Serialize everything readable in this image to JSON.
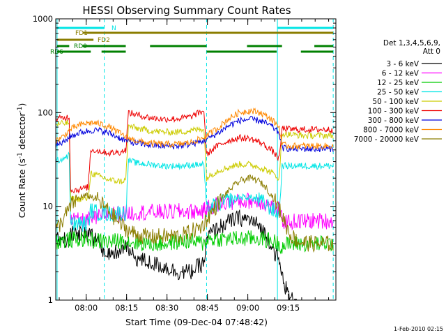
{
  "chart_data": {
    "type": "line",
    "title": "HESSI Observing Summary Count Rates",
    "xlabel": "Start Time (09-Dec-04 07:48:42)",
    "ylabel": "Count Rate (s",
    "ylabel_sup1": "-1",
    "ylabel_mid": " detector",
    "ylabel_sup2": "-1",
    "ylabel_end": ")",
    "y_scale": "log",
    "ylim": [
      1,
      1000
    ],
    "x_unit": "minutes since 07:48:42",
    "xlim": [
      0,
      104
    ],
    "x_ticks": [
      {
        "x": 11.3,
        "label": "08:00"
      },
      {
        "x": 26.3,
        "label": "08:15"
      },
      {
        "x": 41.3,
        "label": "08:30"
      },
      {
        "x": 56.3,
        "label": "08:45"
      },
      {
        "x": 71.3,
        "label": "09:00"
      },
      {
        "x": 86.3,
        "label": "09:15"
      }
    ],
    "y_ticks": [
      {
        "y": 1,
        "label": "1"
      },
      {
        "y": 10,
        "label": "10"
      },
      {
        "y": 100,
        "label": "100"
      },
      {
        "y": 1000,
        "label": "1000"
      }
    ],
    "legend_title": "Det 1,3,4,5,6,9,",
    "legend_subtitle": "Att 0",
    "legend_position": "right",
    "timestamp": "1-Feb-2010 02:15",
    "vlines": [
      {
        "x": 0.5,
        "style": "solid"
      },
      {
        "x": 18.0,
        "style": "dashed"
      },
      {
        "x": 56.0,
        "style": "dashed"
      },
      {
        "x": 82.3,
        "style": "solid"
      },
      {
        "x": 103.0,
        "style": "dashed"
      }
    ],
    "flags": [
      {
        "label": "N",
        "color": "#00e5e5",
        "row": 0,
        "segments": [
          [
            0.5,
            18.0
          ],
          [
            82.3,
            103.0
          ]
        ]
      },
      {
        "label": "FD1",
        "color": "#8b7d00",
        "row": 1,
        "segments": [
          [
            10.0,
            103.0
          ]
        ]
      },
      {
        "label": "FD2",
        "color": "#8b7d00",
        "row": 2,
        "segments": [
          [
            0.5,
            14.0
          ]
        ]
      },
      {
        "label": "RD0",
        "color": "#008000",
        "row": 3,
        "segments": [
          [
            0.5,
            5.0
          ],
          [
            10.0,
            26.0
          ],
          [
            35.0,
            56.0
          ],
          [
            71.0,
            84.0
          ],
          [
            96.0,
            103.0
          ]
        ]
      },
      {
        "label": "RD6",
        "color": "#008000",
        "row": 4,
        "segments": [
          [
            0.5,
            13.0
          ],
          [
            17.0,
            26.0
          ],
          [
            56.0,
            82.0
          ],
          [
            91.0,
            103.0
          ]
        ]
      }
    ],
    "series": [
      {
        "name": "3 - 6 keV",
        "color": "#000000",
        "x": [
          0,
          3,
          5,
          5.5,
          12,
          14,
          17,
          20,
          24,
          26,
          27,
          30,
          35,
          40,
          45,
          50,
          55,
          56,
          57,
          60,
          64,
          68,
          72,
          76,
          80,
          83,
          84,
          86,
          87,
          89,
          90
        ],
        "y": [
          4.5,
          4.5,
          4.3,
          5.0,
          5.0,
          4.6,
          3.6,
          3.2,
          3.2,
          4.0,
          3.3,
          2.8,
          2.5,
          2.3,
          2.0,
          2.0,
          2.5,
          4.2,
          5.0,
          5.8,
          6.8,
          7.5,
          7.2,
          6.0,
          4.0,
          2.5,
          1.8,
          1.2,
          1.0,
          1.0,
          1.0
        ]
      },
      {
        "name": "6 - 12 keV",
        "color": "#ff00ff",
        "x": [
          5.5,
          10,
          15,
          18,
          20,
          24,
          26,
          30,
          35,
          40,
          45,
          50,
          55,
          56,
          57,
          60,
          64,
          68,
          72,
          76,
          80,
          83,
          84,
          86,
          90,
          95,
          100,
          103
        ],
        "y": [
          7.0,
          7.0,
          7.5,
          8.0,
          8.4,
          8.2,
          8.5,
          8.6,
          8.7,
          8.7,
          8.8,
          8.8,
          8.9,
          9.5,
          9.8,
          10.5,
          11.0,
          11.2,
          11.5,
          11.2,
          10.0,
          9.0,
          7.0,
          6.8,
          6.9,
          7.0,
          7.0,
          7.0
        ]
      },
      {
        "name": "12 - 25 keV",
        "color": "#00cc00",
        "x": [
          0,
          5,
          10,
          15,
          20,
          25,
          30,
          35,
          40,
          45,
          50,
          55,
          56,
          60,
          65,
          70,
          75,
          80,
          83,
          84,
          88,
          92,
          96,
          100,
          103
        ],
        "y": [
          4.2,
          4.4,
          4.5,
          4.3,
          4.2,
          4.3,
          4.1,
          4.0,
          4.0,
          4.2,
          4.3,
          4.0,
          4.5,
          4.5,
          4.5,
          4.5,
          4.6,
          4.3,
          4.0,
          3.8,
          4.0,
          4.0,
          4.0,
          4.0,
          4.0
        ]
      },
      {
        "name": "25 - 50 keV",
        "color": "#00e5e5",
        "x": [
          0,
          5,
          5.5,
          8,
          12,
          13,
          14,
          16,
          18,
          20,
          24,
          26,
          27,
          30,
          35,
          40,
          45,
          50,
          55,
          56,
          57,
          60,
          64,
          68,
          72,
          76,
          80,
          83,
          84,
          88,
          92,
          96,
          100,
          103
        ],
        "y": [
          30,
          35,
          6.5,
          6.5,
          6.5,
          9.0,
          8.8,
          8.5,
          8.5,
          8.3,
          8.5,
          8.5,
          31,
          29,
          28,
          27,
          27,
          27.5,
          28,
          9.0,
          9.5,
          10.5,
          11.5,
          12.5,
          12.5,
          11.5,
          9.5,
          8.0,
          27,
          27,
          27,
          27,
          27,
          27
        ]
      },
      {
        "name": "50 - 100 keV",
        "color": "#cccc00",
        "x": [
          0,
          5,
          5.5,
          8,
          12,
          13,
          14,
          16,
          18,
          20,
          24,
          26,
          27,
          30,
          35,
          40,
          45,
          50,
          55,
          56,
          57,
          60,
          64,
          68,
          72,
          76,
          80,
          83,
          84,
          88,
          92,
          96,
          100,
          103
        ],
        "y": [
          75,
          78,
          12,
          12,
          12,
          23,
          22,
          21,
          20,
          19,
          18.5,
          19,
          72,
          68,
          64,
          62,
          62,
          64,
          68,
          20,
          21,
          24,
          26,
          28,
          28,
          26,
          23,
          20,
          60,
          58,
          57,
          57,
          57,
          57
        ]
      },
      {
        "name": "100 - 300 keV",
        "color": "#ee0000",
        "x": [
          0,
          5,
          5.5,
          8,
          12,
          13,
          14,
          16,
          18,
          20,
          24,
          26,
          27,
          30,
          35,
          40,
          45,
          50,
          55,
          56,
          57,
          60,
          64,
          68,
          72,
          76,
          80,
          83,
          84,
          88,
          92,
          96,
          100,
          103
        ],
        "y": [
          85,
          90,
          15,
          15,
          16,
          40,
          40,
          39,
          38,
          37,
          38,
          40,
          100,
          95,
          88,
          85,
          86,
          90,
          105,
          35,
          38,
          44,
          50,
          54,
          53,
          48,
          40,
          32,
          68,
          66,
          66,
          66,
          66,
          66
        ]
      },
      {
        "name": "300 - 800 keV",
        "color": "#0000dd",
        "x": [
          0,
          3,
          5,
          8,
          11,
          14,
          17,
          20,
          23,
          26,
          30,
          35,
          40,
          45,
          50,
          55,
          60,
          64,
          68,
          72,
          76,
          80,
          83,
          84,
          88,
          92,
          96,
          100,
          103
        ],
        "y": [
          45,
          48,
          55,
          60,
          63,
          65,
          64,
          60,
          55,
          50,
          47,
          45,
          44,
          44,
          46,
          50,
          60,
          72,
          82,
          85,
          82,
          72,
          60,
          42,
          41,
          41,
          41,
          41,
          41
        ]
      },
      {
        "name": "800 - 7000 keV",
        "color": "#ff8800",
        "x": [
          0,
          3,
          5,
          8,
          11,
          14,
          17,
          20,
          23,
          26,
          30,
          35,
          40,
          45,
          50,
          55,
          60,
          64,
          68,
          72,
          76,
          80,
          83,
          84,
          88,
          92,
          96,
          100,
          103
        ],
        "y": [
          50,
          56,
          65,
          72,
          77,
          78,
          75,
          70,
          62,
          55,
          50,
          47,
          46,
          46,
          48,
          54,
          68,
          85,
          100,
          105,
          100,
          85,
          70,
          45,
          44,
          44,
          44,
          44,
          44
        ]
      },
      {
        "name": "7000 - 20000 keV",
        "color": "#8b7d00",
        "x": [
          0,
          3,
          6,
          9,
          12,
          15,
          18,
          21,
          24,
          27,
          30,
          33,
          36,
          39,
          42,
          45,
          48,
          51,
          54,
          57,
          60,
          63,
          66,
          69,
          72,
          75,
          78,
          81,
          84,
          87,
          90,
          95,
          100,
          103
        ],
        "y": [
          5.5,
          7.5,
          10.5,
          12.5,
          13.0,
          12.0,
          10.0,
          8.0,
          6.5,
          5.5,
          5.0,
          4.8,
          4.7,
          4.8,
          4.8,
          4.8,
          5.0,
          5.5,
          6.0,
          8.0,
          10.5,
          13.5,
          16.5,
          19.0,
          20.0,
          19.0,
          16.0,
          12.0,
          8.0,
          5.0,
          4.2,
          4.0,
          4.0,
          4.0
        ]
      }
    ]
  }
}
